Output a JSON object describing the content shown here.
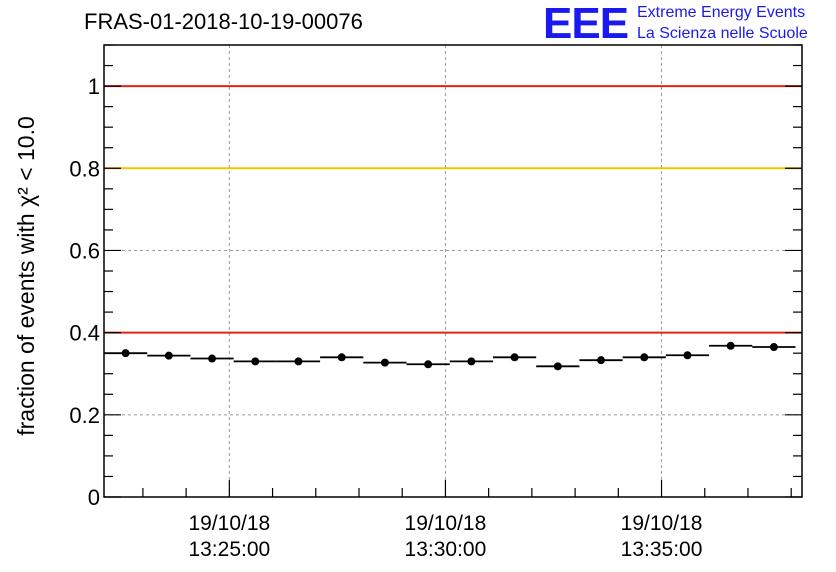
{
  "header": {
    "title": "FRAS-01-2018-10-19-00076",
    "logo_text": "EEE",
    "logo_line1": "Extreme Energy Events",
    "logo_line2": "La Scienza nelle Scuole",
    "logo_color": "#1a1aee"
  },
  "chart_data": {
    "type": "scatter",
    "title": "FRAS-01-2018-10-19-00076",
    "ylabel": "fraction of events with χ² < 10.0",
    "xlabel": "",
    "ylim": [
      0,
      1.1
    ],
    "xlim": [
      "2018-10-19 13:22:06",
      "2018-10-19 13:38:15"
    ],
    "x_ticks": [
      {
        "x": "2018-10-19 13:25:00",
        "line1": "19/10/18",
        "line2": "13:25:00"
      },
      {
        "x": "2018-10-19 13:30:00",
        "line1": "19/10/18",
        "line2": "13:30:00"
      },
      {
        "x": "2018-10-19 13:35:00",
        "line1": "19/10/18",
        "line2": "13:35:00"
      }
    ],
    "y_ticks": [
      "0",
      "0.2",
      "0.4",
      "0.6",
      "0.8",
      "1"
    ],
    "grid": true,
    "reference_lines": [
      {
        "y": 1.0,
        "color": "#e8201a"
      },
      {
        "y": 0.8,
        "color": "#f5c400"
      },
      {
        "y": 0.4,
        "color": "#e8201a"
      }
    ],
    "series": [
      {
        "x": [
          "2018-10-19 13:22:36",
          "2018-10-19 13:23:36",
          "2018-10-19 13:24:36",
          "2018-10-19 13:25:36",
          "2018-10-19 13:26:36",
          "2018-10-19 13:27:36",
          "2018-10-19 13:28:36",
          "2018-10-19 13:29:36",
          "2018-10-19 13:30:36",
          "2018-10-19 13:31:36",
          "2018-10-19 13:32:36",
          "2018-10-19 13:33:36",
          "2018-10-19 13:34:36",
          "2018-10-19 13:35:36",
          "2018-10-19 13:36:36",
          "2018-10-19 13:37:36"
        ],
        "values": [
          0.35,
          0.344,
          0.337,
          0.33,
          0.33,
          0.34,
          0.327,
          0.323,
          0.33,
          0.34,
          0.318,
          0.333,
          0.34,
          0.345,
          0.368,
          0.365
        ],
        "marker_color": "#000000"
      }
    ]
  }
}
